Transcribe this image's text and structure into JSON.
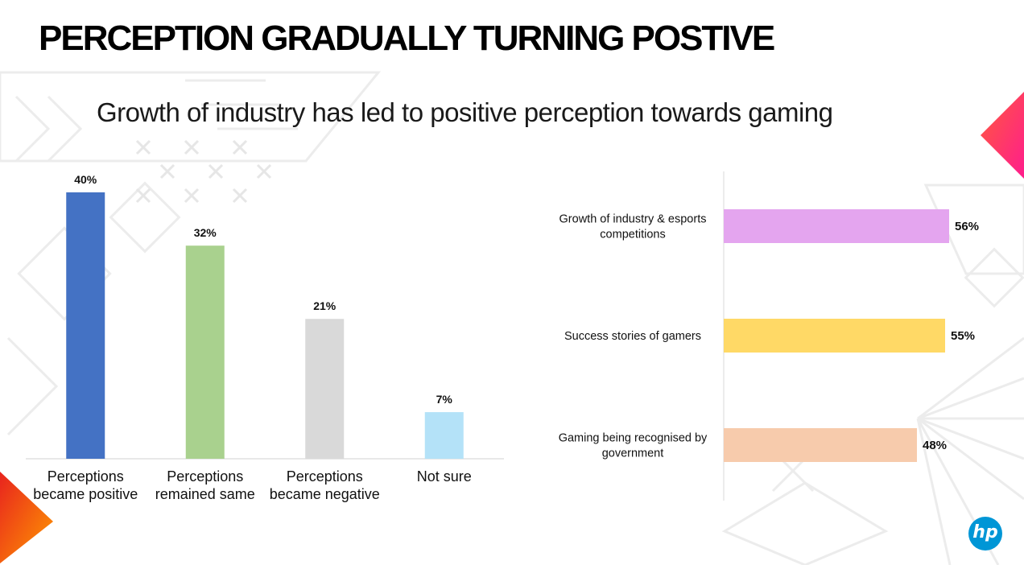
{
  "slide": {
    "title": "PERCEPTION GRADUALLY TURNING POSTIVE",
    "subtitle": "Growth of industry has led to positive perception towards gaming",
    "logo_text": "hp"
  },
  "colors": {
    "accent_red": "#e8231e",
    "accent_orange": "#ff7a00",
    "accent_pink": "#ff2d7a",
    "logo_blue": "#0096d6"
  },
  "chart_data": [
    {
      "type": "bar",
      "orientation": "vertical",
      "categories": [
        [
          "Perceptions",
          "became positive"
        ],
        [
          "Perceptions",
          "remained same"
        ],
        [
          "Perceptions",
          "became negative"
        ],
        [
          "Not sure"
        ]
      ],
      "values": [
        40,
        32,
        21,
        7
      ],
      "value_labels": [
        "40%",
        "32%",
        "21%",
        "7%"
      ],
      "colors": [
        "#4472c4",
        "#a9d18e",
        "#d9d9d9",
        "#b4e2f8"
      ],
      "ylim": [
        0,
        40
      ],
      "grid": false,
      "title": "",
      "xlabel": "",
      "ylabel": ""
    },
    {
      "type": "bar",
      "orientation": "horizontal",
      "categories": [
        [
          "Growth of industry & esports",
          "competitions"
        ],
        [
          "Success stories of gamers"
        ],
        [
          "Gaming being recognised by",
          "government"
        ]
      ],
      "values": [
        56,
        55,
        48
      ],
      "value_labels": [
        "56%",
        "55%",
        "48%"
      ],
      "colors": [
        "#e4a5ef",
        "#ffd966",
        "#f7cbac"
      ],
      "xlim": [
        0,
        56
      ],
      "grid": false,
      "title": "",
      "xlabel": "",
      "ylabel": ""
    }
  ]
}
